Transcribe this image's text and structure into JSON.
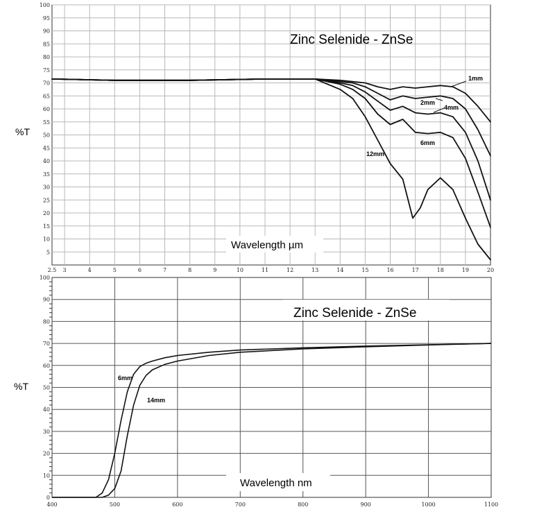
{
  "chart_data": [
    {
      "type": "line",
      "title": "Zinc Selenide - ZnSe",
      "xlabel": "Wavelength µm",
      "ylabel": "%T",
      "xlim": [
        2.5,
        20
      ],
      "ylim": [
        0,
        100
      ],
      "grid": true,
      "x_ticks": [
        "2.5",
        "3",
        "4",
        "5",
        "6",
        "7",
        "8",
        "9",
        "10",
        "11",
        "12",
        "13",
        "14",
        "15",
        "16",
        "17",
        "18",
        "19",
        "20"
      ],
      "y_ticks": [
        "5",
        "10",
        "15",
        "20",
        "25",
        "30",
        "35",
        "40",
        "45",
        "50",
        "55",
        "60",
        "65",
        "70",
        "75",
        "80",
        "85",
        "90",
        "95",
        "100"
      ],
      "series": [
        {
          "name": "1mm",
          "x": [
            2.5,
            5,
            8,
            11,
            13,
            14,
            14.5,
            15,
            15.5,
            16,
            16.5,
            17,
            17.5,
            18,
            18.5,
            19,
            19.5,
            20
          ],
          "y": [
            71.5,
            71,
            71,
            71.5,
            71.5,
            71,
            70.5,
            70,
            68.5,
            67.5,
            68.5,
            68,
            68.5,
            69,
            68.5,
            66,
            61,
            55
          ]
        },
        {
          "name": "2mm",
          "x": [
            2.5,
            5,
            8,
            11,
            13,
            14,
            14.5,
            15,
            15.5,
            16,
            16.5,
            17,
            17.5,
            18,
            18.5,
            19,
            19.5,
            20
          ],
          "y": [
            71.5,
            71,
            71,
            71.5,
            71.5,
            70.5,
            70,
            68.5,
            66,
            63.5,
            65,
            64,
            64.5,
            65,
            64,
            60,
            52,
            42
          ]
        },
        {
          "name": "4mm",
          "x": [
            2.5,
            5,
            8,
            11,
            13,
            14,
            14.5,
            15,
            15.5,
            16,
            16.5,
            17,
            17.5,
            18,
            18.5,
            19,
            19.5,
            20
          ],
          "y": [
            71.5,
            71,
            71,
            71.5,
            71.5,
            70,
            69,
            66.5,
            63,
            59.5,
            61,
            58.5,
            58,
            58.5,
            57,
            51,
            40,
            25
          ]
        },
        {
          "name": "6mm",
          "x": [
            2.5,
            5,
            8,
            11,
            13,
            14,
            14.5,
            15,
            15.5,
            16,
            16.5,
            17,
            17.5,
            18,
            18.5,
            19,
            19.5,
            20
          ],
          "y": [
            71.5,
            71,
            71,
            71.5,
            71.5,
            69.5,
            67.5,
            64,
            58,
            54,
            56,
            51,
            50.5,
            51,
            49,
            41,
            28,
            14.5
          ]
        },
        {
          "name": "12mm",
          "x": [
            2.5,
            5,
            8,
            11,
            13,
            14,
            14.5,
            15,
            15.5,
            16,
            16.5,
            16.9,
            17.2,
            17.5,
            18,
            18.5,
            19,
            19.5,
            20
          ],
          "y": [
            71.5,
            71,
            71,
            71.5,
            71.5,
            67.5,
            64,
            57,
            48,
            39,
            33,
            18,
            22,
            29,
            33.5,
            29,
            18,
            8,
            2
          ]
        }
      ]
    },
    {
      "type": "line",
      "title": "Zinc Selenide - ZnSe",
      "xlabel": "Wavelength nm",
      "ylabel": "%T",
      "xlim": [
        400,
        1100
      ],
      "ylim": [
        0,
        100
      ],
      "grid": true,
      "x_ticks": [
        "400",
        "500",
        "600",
        "700",
        "800",
        "900",
        "1000",
        "1100"
      ],
      "y_ticks": [
        "0",
        "10",
        "20",
        "30",
        "40",
        "50",
        "60",
        "70",
        "80",
        "90",
        "100"
      ],
      "series": [
        {
          "name": "6mm",
          "x": [
            400,
            470,
            480,
            490,
            500,
            510,
            520,
            530,
            540,
            550,
            560,
            580,
            600,
            650,
            700,
            800,
            900,
            1000,
            1100
          ],
          "y": [
            0,
            0,
            2,
            8,
            20,
            35,
            48,
            56,
            59.5,
            61,
            62,
            63.5,
            64.5,
            66,
            67,
            68,
            68.8,
            69.4,
            70
          ]
        },
        {
          "name": "14mm",
          "x": [
            400,
            480,
            490,
            500,
            510,
            520,
            530,
            540,
            550,
            560,
            580,
            600,
            650,
            700,
            800,
            900,
            1000,
            1100
          ],
          "y": [
            0,
            0,
            1,
            4,
            12,
            28,
            42,
            51,
            55.5,
            58,
            60.5,
            62,
            64.5,
            66,
            67.5,
            68.5,
            69.3,
            70
          ]
        }
      ]
    }
  ]
}
